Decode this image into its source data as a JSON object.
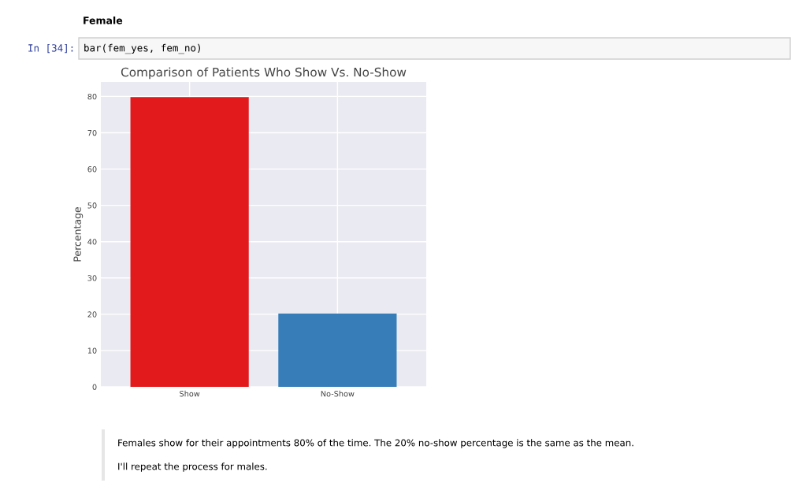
{
  "chart_data": {
    "type": "bar",
    "title": "Comparison of Patients Who Show Vs. No-Show",
    "ylabel": "Percentage",
    "categories": [
      "Show",
      "No-Show"
    ],
    "values": [
      79.8,
      20.2
    ],
    "colors": [
      "#e31a1c",
      "#377eb8"
    ],
    "ylim": [
      0,
      84
    ],
    "yticks": [
      0,
      10,
      20,
      30,
      40,
      50,
      60,
      70,
      80
    ],
    "grid": true,
    "annotations": [
      "Female",
      "In [34]:",
      "bar(fem_yes, fem_no)",
      "Females show for their appointments 80% of the time. The 20% no-show percentage is the same as the mean.",
      "I'll repeat the process for males."
    ]
  }
}
